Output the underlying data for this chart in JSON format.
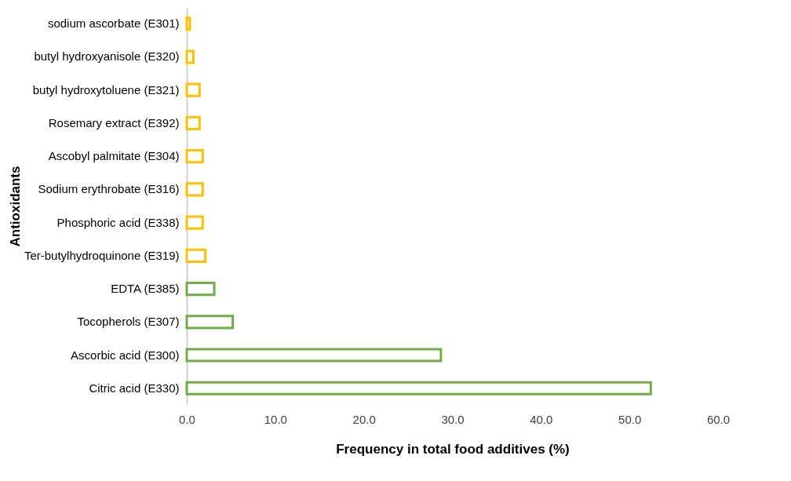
{
  "chart_data": {
    "type": "bar",
    "orientation": "horizontal",
    "xlabel": "Frequency in total food additives (%)",
    "ylabel": "Antioxidants",
    "categories": [
      "sodium ascorbate (E301)",
      "butyl hydroxyanisole (E320)",
      "butyl hydroxytoluene (E321)",
      "Rosemary extract (E392)",
      "Ascobyl palmitate (E304)",
      "Sodium erythrobate (E316)",
      "Phosphoric acid (E338)",
      "Ter-butylhydroquinone (E319)",
      "EDTA (E385)",
      "Tocopherols (E307)",
      "Ascorbic acid (E300)",
      "Citric acid (E330)"
    ],
    "values": [
      0.35,
      0.75,
      1.45,
      1.45,
      1.8,
      1.8,
      1.8,
      2.1,
      3.1,
      5.2,
      28.7,
      52.4
    ],
    "colors": [
      "#ffc000",
      "#ffc000",
      "#ffc000",
      "#ffc000",
      "#ffc000",
      "#ffc000",
      "#ffc000",
      "#ffc000",
      "#70ad47",
      "#70ad47",
      "#70ad47",
      "#70ad47"
    ],
    "xlim": [
      0,
      60
    ],
    "xticks": [
      {
        "value": 0,
        "label": "0.0"
      },
      {
        "value": 10,
        "label": "10.0"
      },
      {
        "value": 20,
        "label": "20.0"
      },
      {
        "value": 30,
        "label": "30.0"
      },
      {
        "value": 40,
        "label": "40.0"
      },
      {
        "value": 50,
        "label": "50.0"
      },
      {
        "value": 60,
        "label": "60.0"
      }
    ],
    "grid": false,
    "legend": false
  }
}
